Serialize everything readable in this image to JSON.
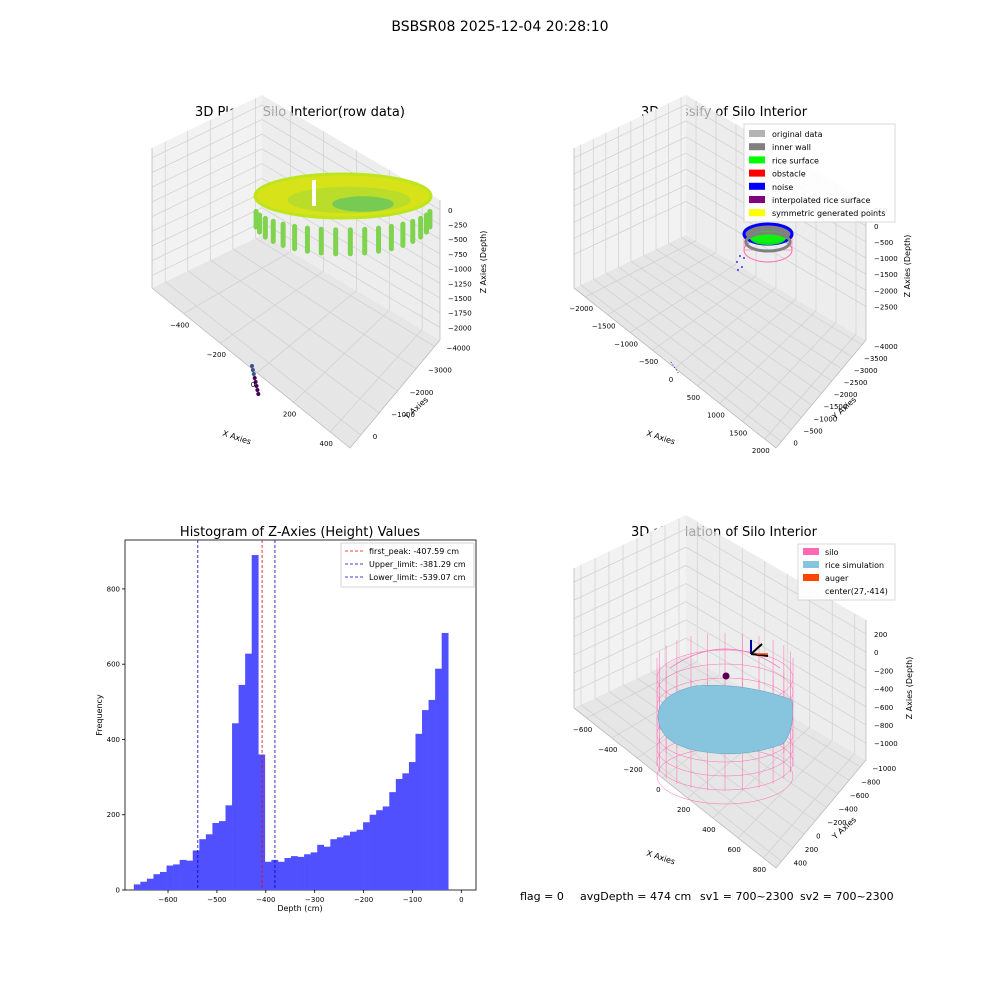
{
  "figure": {
    "suptitle": "BSBSR08 2025-12-04 20:28:10",
    "footer": {
      "flag": "flag = 0",
      "avg": "avgDepth = 474 cm",
      "sv1": "sv1 = 700~2300",
      "sv2": "sv2 = 700~2300"
    }
  },
  "colors": {
    "pane": "#f2f2f2",
    "pane_dark": "#e6e6e6",
    "grid": "#d0d0d0",
    "hist_bar": "#5050ff",
    "peak": "#ff0000",
    "limit": "#0000cc",
    "silo": "#ff69b4",
    "rice": "#87c4de",
    "auger": "#ff4500",
    "original": "#b3b3b3",
    "inner_wall": "#808080",
    "rice_surface": "#00ff00",
    "obstacle": "#ff0000",
    "noise": "#0000ff",
    "interp": "#800080",
    "symmetric": "#ffff00"
  },
  "chart_data": [
    {
      "type": "scatter",
      "title": "3D Plot of Silo Interior(row data)",
      "xlabel": "X Axies",
      "ylabel": "Y Axies",
      "zlabel": "Z Axies (Depth)",
      "x_ticks": [
        "−400",
        "−200",
        "0",
        "200",
        "400"
      ],
      "y_ticks": [
        "0",
        "−1000",
        "−2000",
        "−3000",
        "−4000"
      ],
      "z_ticks": [
        "0",
        "−250",
        "−500",
        "−750",
        "−1000",
        "−1250",
        "−1500",
        "−1750",
        "−2000"
      ],
      "colormap": "viridis"
    },
    {
      "type": "scatter",
      "title": "3D classify of Silo Interior",
      "xlabel": "X Axies",
      "ylabel": "Y Axies",
      "zlabel": "Z Axies (Depth)",
      "x_ticks": [
        "−2000",
        "−1500",
        "−1000",
        "−500",
        "0",
        "500",
        "1000",
        "1500",
        "2000"
      ],
      "y_ticks": [
        "0",
        "−500",
        "−1000",
        "−1500",
        "−2000",
        "−2500",
        "−3000",
        "−3500",
        "−4000"
      ],
      "z_ticks": [
        "500",
        "0",
        "−500",
        "−1000",
        "−1500",
        "−2000",
        "−2500"
      ],
      "legend": [
        {
          "label": "original data",
          "color": "#b3b3b3"
        },
        {
          "label": "inner wall",
          "color": "#808080"
        },
        {
          "label": "rice surface",
          "color": "#00ff00"
        },
        {
          "label": "obstacle",
          "color": "#ff0000"
        },
        {
          "label": "noise",
          "color": "#0000ff"
        },
        {
          "label": "interpolated rice surface",
          "color": "#800080"
        },
        {
          "label": "symmetric generated points",
          "color": "#ffff00"
        }
      ],
      "legend_position": "top-right"
    },
    {
      "type": "bar",
      "title": "Histogram of Z-Axies (Height) Values",
      "xlabel": "Depth (cm)",
      "ylabel": "Frequency",
      "xlim": [
        -688,
        30
      ],
      "ylim": [
        0,
        930
      ],
      "x_ticks": [
        -600,
        -500,
        -400,
        -300,
        -200,
        -100,
        0
      ],
      "x_tick_labels": [
        "−600",
        "−500",
        "−400",
        "−300",
        "−200",
        "−100",
        "0"
      ],
      "y_ticks": [
        0,
        200,
        400,
        600,
        800
      ],
      "bin_start": -670,
      "bin_width": 13.4,
      "values": [
        15,
        22,
        30,
        42,
        48,
        65,
        68,
        80,
        78,
        105,
        135,
        148,
        178,
        183,
        225,
        443,
        545,
        628,
        890,
        360,
        75,
        80,
        75,
        85,
        90,
        88,
        95,
        100,
        120,
        115,
        135,
        140,
        145,
        155,
        160,
        180,
        200,
        212,
        222,
        260,
        295,
        310,
        340,
        415,
        478,
        505,
        588,
        683
      ],
      "vlines": [
        {
          "label": "first_peak: -407.59 cm",
          "x": -407.59,
          "color": "#ff0000"
        },
        {
          "label": "Upper_limit: -381.29 cm",
          "x": -381.29,
          "color": "#0000cc"
        },
        {
          "label": "Lower_limit: -539.07 cm",
          "x": -539.07,
          "color": "#0000cc"
        }
      ],
      "legend_position": "top-right"
    },
    {
      "type": "scatter",
      "title": "3D simulation of Silo Interior",
      "xlabel": "X Axies",
      "ylabel": "Y Axies",
      "zlabel": "Z Axies (Depth)",
      "x_ticks": [
        "−600",
        "−400",
        "−200",
        "0",
        "200",
        "400",
        "600",
        "800"
      ],
      "y_ticks": [
        "400",
        "200",
        "0",
        "−200",
        "−400",
        "−600",
        "−800",
        "−1000"
      ],
      "z_ticks": [
        "200",
        "0",
        "−200",
        "−400",
        "−600",
        "−800",
        "−1000"
      ],
      "legend": [
        {
          "label": "silo",
          "color": "#ff69b4"
        },
        {
          "label": "rice simulation",
          "color": "#87c4de"
        },
        {
          "label": "auger",
          "color": "#ff4500"
        },
        {
          "label": "center(27,-414)",
          "color": ""
        }
      ],
      "legend_position": "top-right"
    }
  ]
}
